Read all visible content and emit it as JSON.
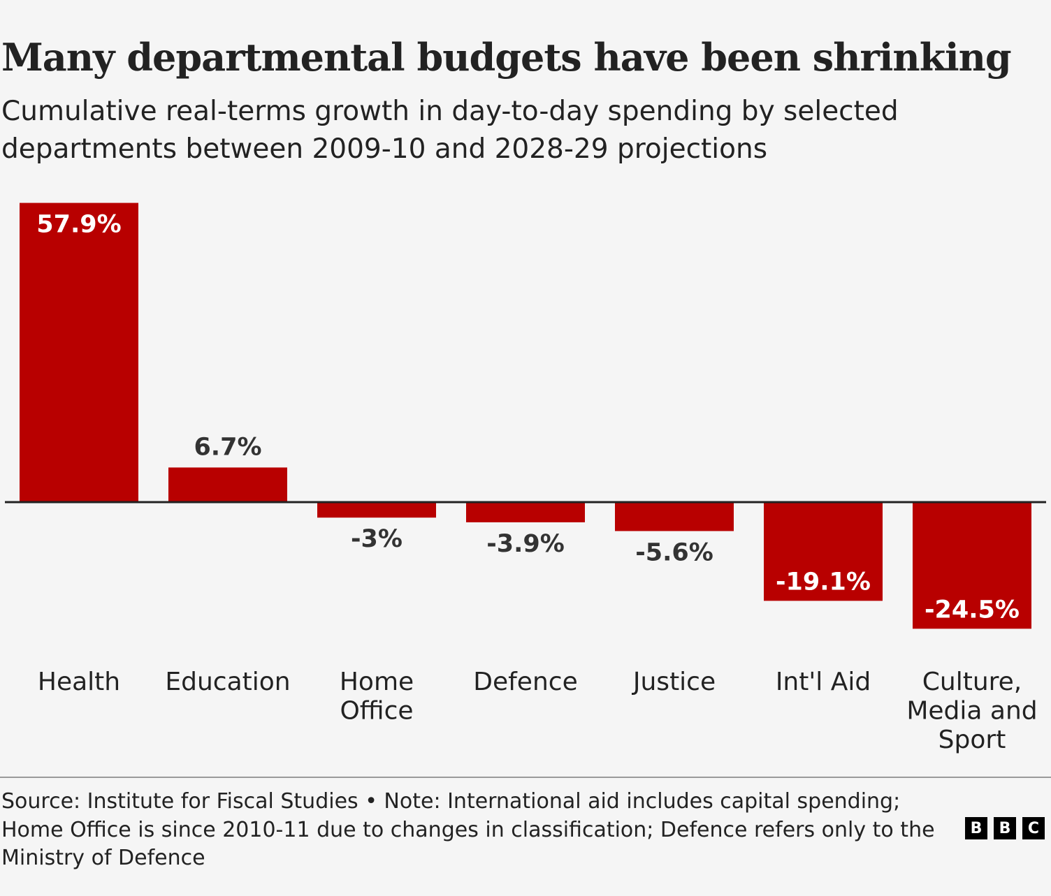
{
  "chart_data": {
    "type": "bar",
    "title": "Many departmental budgets have been shrinking",
    "subtitle": "Cumulative real-terms growth in day-to-day spending by selected departments between 2009-10 and 2028-29 projections",
    "categories": [
      "Health",
      "Education",
      "Home Office",
      "Defence",
      "Justice",
      "Int'l Aid",
      "Culture, Media and Sport"
    ],
    "category_lines": [
      [
        "Health"
      ],
      [
        "Education"
      ],
      [
        "Home",
        "Office"
      ],
      [
        "Defence"
      ],
      [
        "Justice"
      ],
      [
        "Int'l Aid"
      ],
      [
        "Culture,",
        "Media and",
        "Sport"
      ]
    ],
    "values": [
      57.9,
      6.7,
      -3,
      -3.9,
      -5.6,
      -19.1,
      -24.5
    ],
    "data_labels": [
      "57.9%",
      "6.7%",
      "-3%",
      "-3.9%",
      "-5.6%",
      "-19.1%",
      "-24.5%"
    ],
    "xlabel": "",
    "ylabel": "",
    "grid": false,
    "bar_color": "#b80000",
    "unit": "%"
  },
  "footer": {
    "source": "Source: Institute for Fiscal Studies • Note: International aid includes capital spending; Home Office is since 2010-11 due to changes in classification; Defence refers only to the Ministry of Defence",
    "logo": "BBC"
  }
}
